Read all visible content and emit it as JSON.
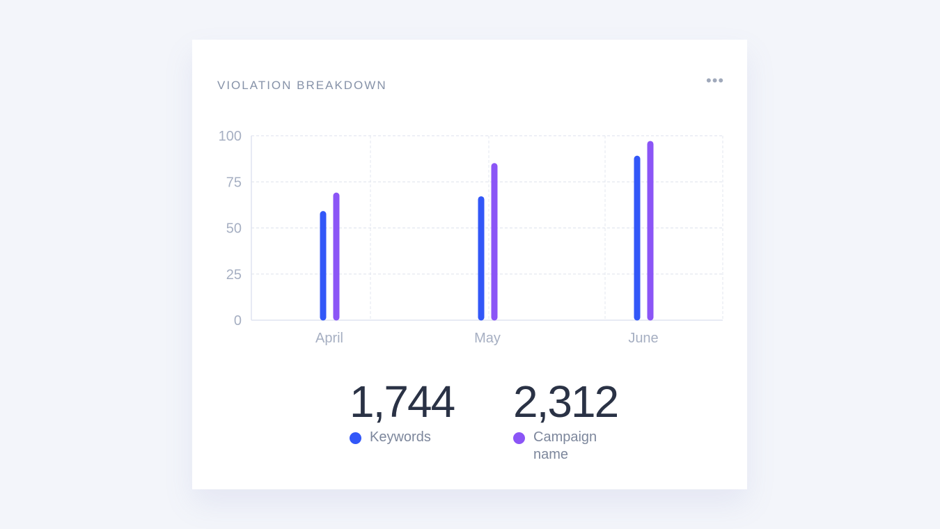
{
  "card": {
    "title": "VIOLATION BREAKDOWN",
    "menu_label": "•••"
  },
  "chart_data": {
    "type": "bar",
    "title": "VIOLATION BREAKDOWN",
    "categories": [
      "April",
      "May",
      "June"
    ],
    "series": [
      {
        "name": "Keywords",
        "color": "#3257f8",
        "values": [
          59,
          67,
          89
        ]
      },
      {
        "name": "Campaign name",
        "color": "#8b55f6",
        "values": [
          69,
          85,
          97
        ]
      }
    ],
    "ylim": [
      0,
      100
    ],
    "yticks": [
      "0",
      "25",
      "50",
      "75",
      "100"
    ],
    "grid": true,
    "xlabel": "",
    "ylabel": ""
  },
  "stats": [
    {
      "value": "1,744",
      "label": "Keywords",
      "color": "#3257f8"
    },
    {
      "value": "2,312",
      "label": "Campaign name",
      "color": "#8b55f6"
    }
  ]
}
